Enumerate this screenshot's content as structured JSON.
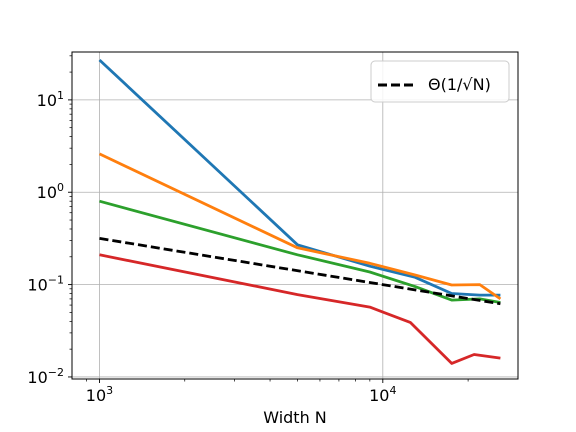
{
  "chart_data": {
    "type": "line",
    "title": "",
    "xlabel": "Width N",
    "ylabel": "",
    "xscale": "log",
    "yscale": "log",
    "xlim": [
      800,
      30000
    ],
    "ylim": [
      0.0095,
      33
    ],
    "grid": true,
    "legend_position": "top-right",
    "x_major_ticks": [
      {
        "value": 1000,
        "base": "10",
        "exp": "3"
      },
      {
        "value": 10000,
        "base": "10",
        "exp": "4"
      }
    ],
    "y_major_ticks": [
      {
        "value": 0.01,
        "base": "10",
        "exp": "−2"
      },
      {
        "value": 0.1,
        "base": "10",
        "exp": "−1"
      },
      {
        "value": 1,
        "base": "10",
        "exp": "0"
      },
      {
        "value": 10,
        "base": "10",
        "exp": "1"
      }
    ],
    "series": [
      {
        "color": "#1f77b4",
        "dashed": false,
        "points": [
          [
            1000,
            27.0
          ],
          [
            5000,
            0.27
          ],
          [
            9000,
            0.158
          ],
          [
            13000,
            0.12
          ],
          [
            17500,
            0.08
          ],
          [
            22000,
            0.077
          ],
          [
            26000,
            0.077
          ]
        ]
      },
      {
        "color": "#ff7f0e",
        "dashed": false,
        "points": [
          [
            1000,
            2.6
          ],
          [
            5000,
            0.25
          ],
          [
            9000,
            0.17
          ],
          [
            13000,
            0.127
          ],
          [
            17500,
            0.099
          ],
          [
            22000,
            0.1
          ],
          [
            26000,
            0.07
          ]
        ]
      },
      {
        "color": "#2ca02c",
        "dashed": false,
        "points": [
          [
            1000,
            0.8
          ],
          [
            5000,
            0.21
          ],
          [
            9000,
            0.137
          ],
          [
            13000,
            0.095
          ],
          [
            17500,
            0.068
          ],
          [
            22000,
            0.07
          ],
          [
            26000,
            0.064
          ]
        ]
      },
      {
        "color": "#d62728",
        "dashed": false,
        "points": [
          [
            1000,
            0.21
          ],
          [
            5000,
            0.078
          ],
          [
            9000,
            0.057
          ],
          [
            12500,
            0.039
          ],
          [
            17500,
            0.014
          ],
          [
            21000,
            0.0175
          ],
          [
            26000,
            0.016
          ]
        ]
      },
      {
        "name": "Θ(1/√N)",
        "color": "#000000",
        "dashed": true,
        "points": [
          [
            1000,
            0.316
          ],
          [
            26000,
            0.062
          ]
        ]
      }
    ]
  }
}
